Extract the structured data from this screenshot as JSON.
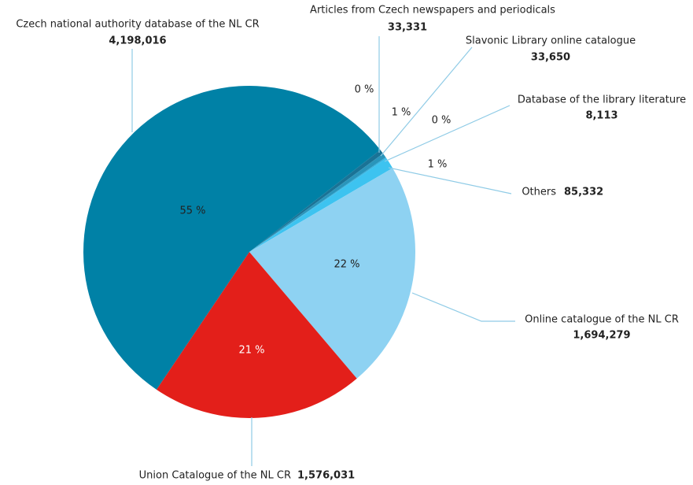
{
  "chart_data": {
    "type": "pie",
    "categories": [
      "Czech national authority database of the NL CR",
      "Articles from Czech newspapers and periodicals",
      "Slavonic Library online catalogue",
      "Database of the library literature",
      "Others",
      "Online catalogue of the NL CR",
      "Union Catalogue of the NL CR"
    ],
    "values": [
      4198016,
      33331,
      33650,
      8113,
      85332,
      1694279,
      1576031
    ],
    "value_labels": [
      "4,198,016",
      "33,331",
      "33,650",
      "8,113",
      "85,332",
      "1,694,279",
      "1,576,031"
    ],
    "percent_labels": [
      "55 %",
      "0 %",
      "1 %",
      "0 %",
      "1 %",
      "22 %",
      "21 %"
    ],
    "colors": [
      "#0081a6",
      "#1a7396",
      "#2a95bb",
      "#33aedb",
      "#3dc3f0",
      "#8ed2f2",
      "#e31f1a"
    ]
  }
}
